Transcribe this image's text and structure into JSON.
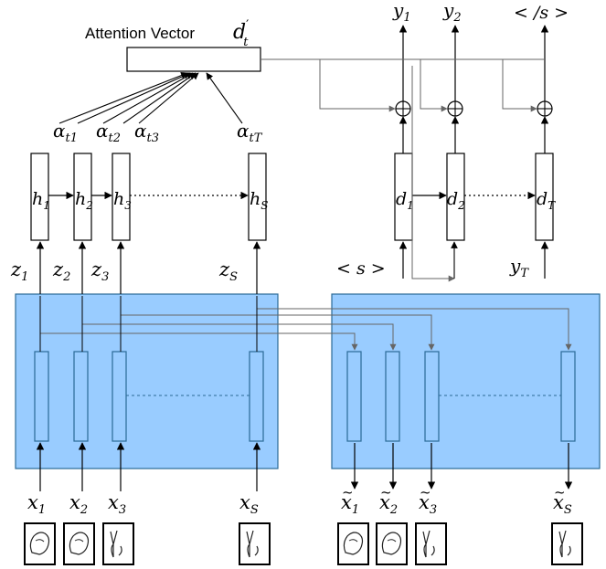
{
  "attention": {
    "title": "Attention Vector",
    "symbol": "d",
    "symbol_prime": "′",
    "symbol_sub": "t"
  },
  "alphas": [
    {
      "base": "α",
      "sub": "t1"
    },
    {
      "base": "α",
      "sub": "t2"
    },
    {
      "base": "α",
      "sub": "t3"
    },
    {
      "base": "α",
      "sub": "tT"
    }
  ],
  "encoder_states": [
    {
      "base": "h",
      "sub": "1"
    },
    {
      "base": "h",
      "sub": "2"
    },
    {
      "base": "h",
      "sub": "3"
    },
    {
      "base": "h",
      "sub": "S"
    }
  ],
  "decoder_states": [
    {
      "base": "d",
      "sub": "1"
    },
    {
      "base": "d",
      "sub": "2"
    },
    {
      "base": "d",
      "sub": "T"
    }
  ],
  "outputs": [
    {
      "base": "y",
      "sub": "1"
    },
    {
      "base": "y",
      "sub": "2"
    },
    {
      "text": "< /s >"
    }
  ],
  "latents": [
    {
      "base": "z",
      "sub": "1"
    },
    {
      "base": "z",
      "sub": "2"
    },
    {
      "base": "z",
      "sub": "3"
    },
    {
      "base": "z",
      "sub": "S"
    }
  ],
  "decoder_inputs": [
    {
      "text": "< s >"
    },
    {
      "base": "y",
      "sub": "T"
    }
  ],
  "inputs": [
    {
      "base": "x",
      "sub": "1"
    },
    {
      "base": "x",
      "sub": "2"
    },
    {
      "base": "x",
      "sub": "3"
    },
    {
      "base": "x",
      "sub": "S"
    }
  ],
  "reconstructions": [
    {
      "base": "x",
      "sub": "1"
    },
    {
      "base": "x",
      "sub": "2"
    },
    {
      "base": "x",
      "sub": "3"
    },
    {
      "base": "x",
      "sub": "S"
    }
  ],
  "sum_symbol": "⊕",
  "colors": {
    "autoencoder_fill": "#99ccff",
    "autoencoder_stroke": "#2b6a96",
    "lines": "#000000",
    "skip_lines": "#666666"
  }
}
